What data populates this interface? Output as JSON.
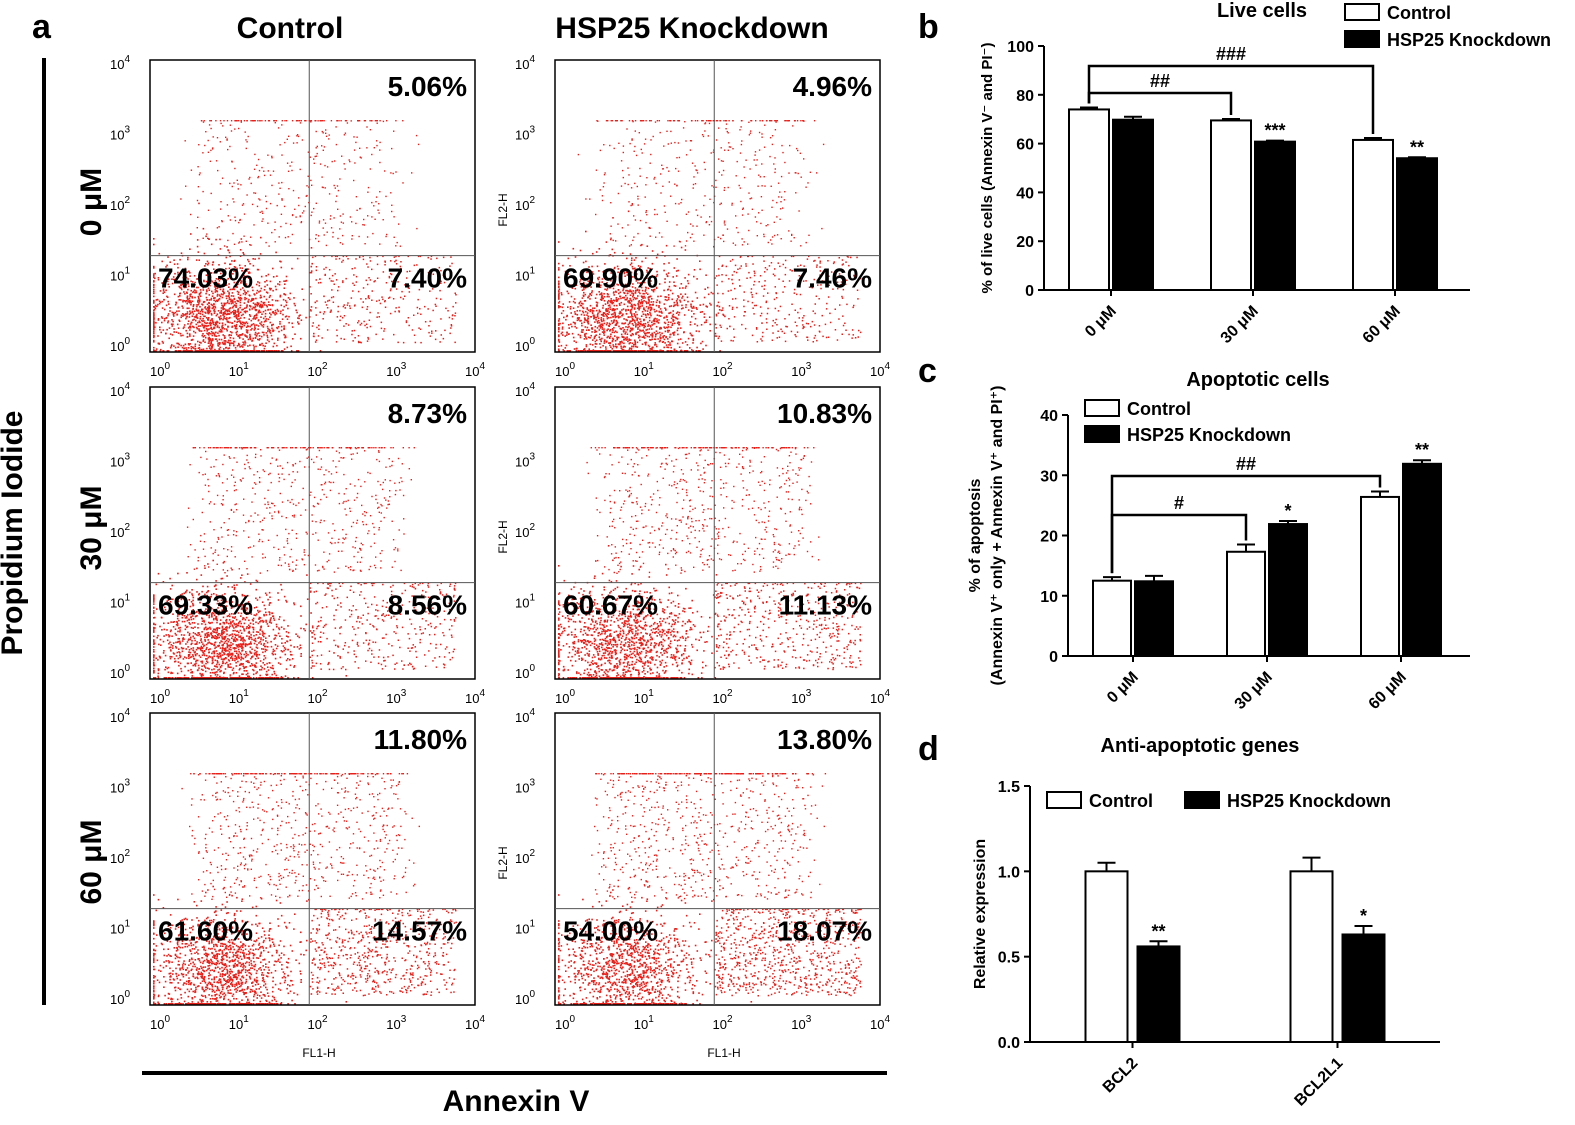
{
  "colors": {
    "dot": "#e8201a",
    "axis": "#000000",
    "quad": "#555555",
    "control_fill": "#ffffff",
    "knock_fill": "#000000"
  },
  "panel_a": {
    "letter": "a",
    "col_titles": [
      "Control",
      "HSP25 Knockdown"
    ],
    "row_titles": [
      "0 μM",
      "30 μM",
      "60 μM"
    ],
    "y_title": "Propidium Iodide",
    "x_title": "Annexin V",
    "fl1": "FL1-H",
    "fl2": "FL2-H",
    "tick_exps": [
      "0",
      "1",
      "2",
      "3",
      "4"
    ],
    "tick_base": "10",
    "plots": [
      {
        "condition": "Control",
        "dose": "0 μM",
        "ul": "",
        "ur": "5.06%",
        "ll": "74.03%",
        "lr": "7.40%",
        "fl1": false,
        "fl2": false
      },
      {
        "condition": "HSP25 Knockdown",
        "dose": "0 μM",
        "ul": "",
        "ur": "4.96%",
        "ll": "69.90%",
        "lr": "7.46%",
        "fl1": false,
        "fl2": true
      },
      {
        "condition": "Control",
        "dose": "30 μM",
        "ul": "",
        "ur": "8.73%",
        "ll": "69.33%",
        "lr": "8.56%",
        "fl1": false,
        "fl2": false
      },
      {
        "condition": "HSP25 Knockdown",
        "dose": "30 μM",
        "ul": "",
        "ur": "10.83%",
        "ll": "60.67%",
        "lr": "11.13%",
        "fl1": false,
        "fl2": true
      },
      {
        "condition": "Control",
        "dose": "60 μM",
        "ul": "",
        "ur": "11.80%",
        "ll": "61.60%",
        "lr": "14.57%",
        "fl1": true,
        "fl2": false
      },
      {
        "condition": "HSP25 Knockdown",
        "dose": "60 μM",
        "ul": "",
        "ur": "13.80%",
        "ll": "54.00%",
        "lr": "18.07%",
        "fl1": true,
        "fl2": true
      }
    ]
  },
  "chart_data": [
    {
      "panel": "b",
      "type": "bar",
      "title": "Live cells",
      "ylabel": "% of live cells (Annexin V⁻ and PI⁻)",
      "categories": [
        "0 μM",
        "30 μM",
        "60 μM"
      ],
      "ylim": [
        0,
        100
      ],
      "yticks": [
        0,
        20,
        40,
        60,
        80,
        100
      ],
      "series": [
        {
          "name": "Control",
          "values": [
            74,
            69.5,
            61.5
          ],
          "errors": [
            0.8,
            0.6,
            0.8
          ]
        },
        {
          "name": "HSP25 Knockdown",
          "values": [
            69.8,
            60.8,
            54
          ],
          "errors": [
            1.2,
            0.4,
            0.4
          ]
        }
      ],
      "stars": [
        "",
        "***",
        "**"
      ],
      "brackets": [
        {
          "from": 0,
          "to": 1,
          "label": "##"
        },
        {
          "from": 0,
          "to": 2,
          "label": "###"
        }
      ],
      "legend_position": "top-right"
    },
    {
      "panel": "c",
      "type": "bar",
      "title": "Apoptotic cells",
      "ylabel_lines": [
        "% of apoptosis",
        "(Annexin V⁺ only + Annexin V⁺ and PI⁺)"
      ],
      "categories": [
        "0 μM",
        "30 μM",
        "60 μM"
      ],
      "ylim": [
        0,
        40
      ],
      "yticks": [
        0,
        10,
        20,
        30,
        40
      ],
      "series": [
        {
          "name": "Control",
          "values": [
            12.5,
            17.3,
            26.4
          ],
          "errors": [
            0.6,
            1.2,
            0.9
          ]
        },
        {
          "name": "HSP25 Knockdown",
          "values": [
            12.4,
            21.9,
            31.9
          ],
          "errors": [
            0.9,
            0.5,
            0.6
          ]
        }
      ],
      "stars": [
        "",
        "*",
        "**"
      ],
      "brackets": [
        {
          "from": 0,
          "to": 1,
          "label": "#"
        },
        {
          "from": 0,
          "to": 2,
          "label": "##"
        }
      ],
      "legend_position": "top-left"
    },
    {
      "panel": "d",
      "type": "bar",
      "title": "Anti-apoptotic genes",
      "ylabel": "Relative expression",
      "categories": [
        "BCL2",
        "BCL2L1"
      ],
      "ylim": [
        0,
        1.5
      ],
      "yticks": [
        0,
        0.5,
        1.0,
        1.5
      ],
      "ytick_labels": [
        "0.0",
        "0.5",
        "1.0",
        "1.5"
      ],
      "series": [
        {
          "name": "Control",
          "values": [
            1.0,
            1.0
          ],
          "errors": [
            0.05,
            0.08
          ]
        },
        {
          "name": "HSP25 Knockdown",
          "values": [
            0.56,
            0.63
          ],
          "errors": [
            0.03,
            0.05
          ]
        }
      ],
      "stars": [
        "**",
        "*"
      ],
      "brackets": [],
      "legend_position": "top"
    }
  ]
}
